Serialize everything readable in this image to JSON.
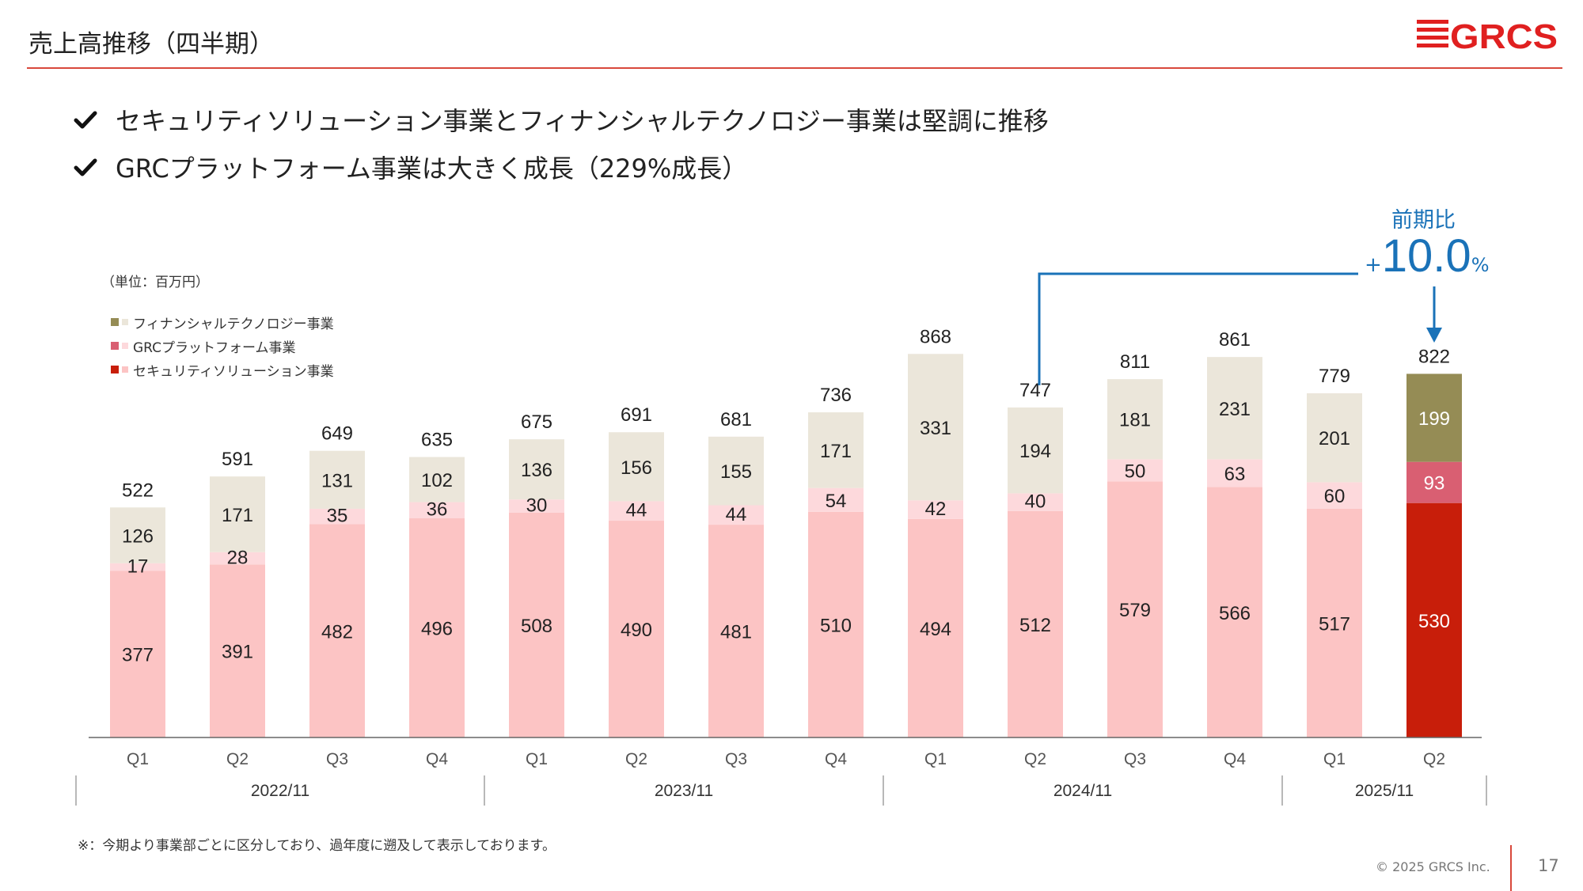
{
  "header": {
    "title": "売上高推移（四半期）",
    "logo_text": "GRCS"
  },
  "bullets": [
    "セキュリティソリューション事業とフィナンシャルテクノロジー事業は堅調に推移",
    "GRCプラットフォーム事業は大きく成長（229%成長）"
  ],
  "icons": {
    "bullet": "check-icon",
    "annotation": "arrow-down-icon"
  },
  "yoy": {
    "label": "前期比",
    "plus": "+",
    "value": "10.0",
    "unit": "%"
  },
  "footnote": "※：今期より事業部ごとに区分しており、過年度に遡及して表示しております。",
  "footer": {
    "copyright": "© 2025 GRCS Inc.",
    "page": "17"
  },
  "colors": {
    "accent": "#d9483b",
    "logo": "#e02020",
    "annotation": "#1a72b8",
    "fin_past": "#ebe6da",
    "grc_past": "#fdd9dc",
    "sec_past": "#fcc4c4",
    "fin_current": "#958c55",
    "grc_current": "#d95f72",
    "sec_current": "#c81e0a"
  },
  "chart_data": {
    "type": "bar",
    "stacked": true,
    "unit_note": "（単位：百万円）",
    "categories": [
      "Q1",
      "Q2",
      "Q3",
      "Q4",
      "Q1",
      "Q2",
      "Q3",
      "Q4",
      "Q1",
      "Q2",
      "Q3",
      "Q4",
      "Q1",
      "Q2"
    ],
    "periods": [
      {
        "label": "2022/11",
        "count": 4
      },
      {
        "label": "2023/11",
        "count": 4
      },
      {
        "label": "2024/11",
        "count": 4
      },
      {
        "label": "2025/11",
        "count": 2
      }
    ],
    "series": [
      {
        "name": "セキュリティソリューション事業",
        "values": [
          377,
          391,
          482,
          496,
          508,
          490,
          481,
          510,
          494,
          512,
          579,
          566,
          517,
          530
        ]
      },
      {
        "name": "GRCプラットフォーム事業",
        "values": [
          17,
          28,
          35,
          36,
          30,
          44,
          44,
          54,
          42,
          40,
          50,
          63,
          60,
          93
        ]
      },
      {
        "name": "フィナンシャルテクノロジー事業",
        "values": [
          126,
          171,
          131,
          102,
          136,
          156,
          155,
          171,
          331,
          194,
          181,
          231,
          201,
          199
        ]
      }
    ],
    "totals": [
      522,
      591,
      649,
      635,
      675,
      691,
      681,
      736,
      868,
      747,
      811,
      861,
      779,
      822
    ],
    "legend_order": [
      "フィナンシャルテクノロジー事業",
      "GRCプラットフォーム事業",
      "セキュリティソリューション事業"
    ],
    "highlight_index": 13,
    "comparison_from_index": 9,
    "ylim": [
      0,
      880
    ],
    "legend": "top-left",
    "grid": false
  }
}
